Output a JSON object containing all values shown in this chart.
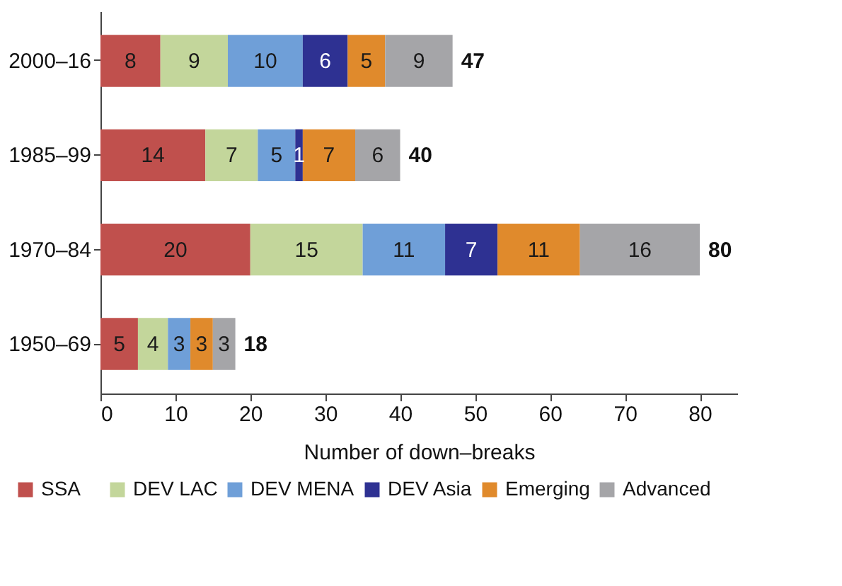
{
  "chart_data": {
    "type": "bar",
    "orientation": "horizontal",
    "stacked": true,
    "xlabel": "Number of down–breaks",
    "categories": [
      "2000–16",
      "1985–99",
      "1970–84",
      "1950–69"
    ],
    "series": [
      {
        "name": "SSA",
        "color": "#c0504d",
        "values": [
          8,
          14,
          20,
          5
        ]
      },
      {
        "name": "DEV LAC",
        "color": "#c3d69b",
        "values": [
          9,
          7,
          15,
          4
        ]
      },
      {
        "name": "DEV MENA",
        "color": "#6f9fd8",
        "values": [
          10,
          5,
          11,
          3
        ]
      },
      {
        "name": "DEV Asia",
        "color": "#2e3192",
        "values": [
          6,
          1,
          7,
          null
        ]
      },
      {
        "name": "Emerging",
        "color": "#e08a2c",
        "values": [
          5,
          7,
          11,
          3
        ]
      },
      {
        "name": "Advanced",
        "color": "#a5a5a8",
        "values": [
          9,
          6,
          16,
          3
        ]
      }
    ],
    "totals": [
      "47",
      "40",
      "80",
      "18"
    ],
    "xlim": [
      0,
      85
    ],
    "xticks": [
      0,
      10,
      20,
      30,
      40,
      50,
      60,
      70,
      80
    ],
    "data_labels": true,
    "grid": false,
    "legend": "bottom"
  }
}
